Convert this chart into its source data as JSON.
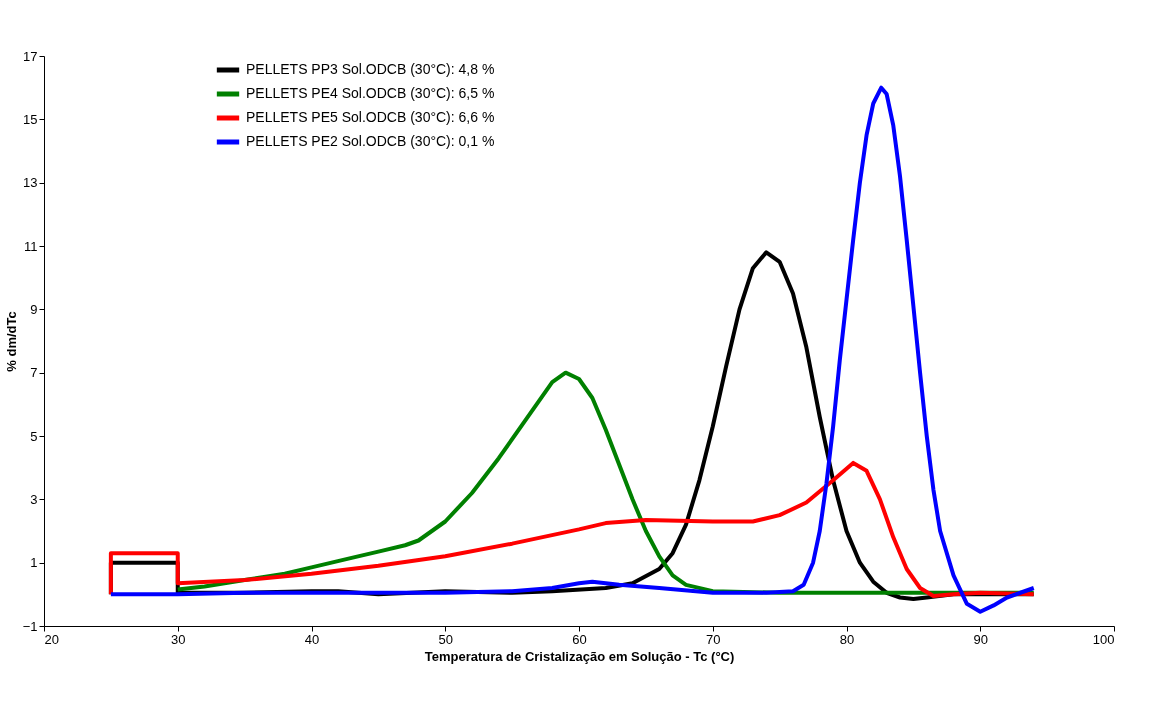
{
  "chart_data": {
    "type": "line",
    "xlabel": "Temperatura de Cristalização em Solução - Tc (°C)",
    "ylabel": "% dm/dTc",
    "xlim": [
      20,
      100
    ],
    "xticks": [
      20,
      30,
      40,
      50,
      60,
      70,
      80,
      90,
      100
    ],
    "ylim": [
      -1,
      17
    ],
    "yticks": [
      -1,
      1,
      3,
      5,
      7,
      9,
      11,
      13,
      15,
      17
    ],
    "grid": false,
    "legend": "top left",
    "marker": "none",
    "line_style": "solid",
    "series": [
      {
        "name": "PELLETS PP3 Sol.ODCB (30°C):  4,8 %",
        "color": "#000000",
        "x": [
          25,
          25,
          30,
          30,
          35,
          40,
          42,
          45,
          50,
          55,
          58,
          62,
          64,
          66,
          67,
          68,
          69,
          70,
          71,
          72,
          73,
          74,
          75,
          76,
          77,
          78,
          79,
          80,
          81,
          82,
          83,
          84,
          85,
          86,
          88,
          90,
          94
        ],
        "values": [
          0,
          1,
          1,
          0.05,
          0.05,
          0.1,
          0.1,
          0.0,
          0.1,
          0.05,
          0.1,
          0.2,
          0.35,
          0.8,
          1.3,
          2.2,
          3.6,
          5.3,
          7.2,
          9.0,
          10.3,
          10.8,
          10.5,
          9.5,
          7.8,
          5.6,
          3.6,
          2.0,
          1.0,
          0.4,
          0.05,
          -0.1,
          -0.15,
          -0.1,
          0,
          0,
          0
        ]
      },
      {
        "name": "PELLETS PE4 Sol.ODCB (30°C):  6,5 %",
        "color": "#008000",
        "x": [
          30,
          32,
          35,
          38,
          40,
          43,
          45,
          47,
          48,
          50,
          52,
          54,
          56,
          57,
          58,
          59,
          60,
          61,
          62,
          63,
          64,
          65,
          66,
          67,
          68,
          70,
          75,
          80,
          85,
          90,
          94
        ],
        "values": [
          0.15,
          0.25,
          0.45,
          0.65,
          0.85,
          1.15,
          1.35,
          1.55,
          1.7,
          2.3,
          3.2,
          4.3,
          5.5,
          6.1,
          6.7,
          7.0,
          6.8,
          6.2,
          5.2,
          4.1,
          3.0,
          2.0,
          1.2,
          0.6,
          0.3,
          0.1,
          0.05,
          0.05,
          0.05,
          0.05,
          0.05
        ]
      },
      {
        "name": "PELLETS PE5 Sol.ODCB (30°C):  6,6 %",
        "color": "#ff0000",
        "x": [
          25,
          25,
          30,
          30,
          35,
          40,
          45,
          50,
          55,
          60,
          62,
          65,
          70,
          73,
          75,
          77,
          79,
          80.5,
          81.5,
          82.5,
          83.5,
          84.5,
          85.5,
          86.5,
          88,
          90,
          94
        ],
        "values": [
          0,
          1.3,
          1.3,
          0.35,
          0.45,
          0.65,
          0.9,
          1.2,
          1.6,
          2.05,
          2.25,
          2.35,
          2.3,
          2.3,
          2.5,
          2.9,
          3.6,
          4.15,
          3.9,
          3.0,
          1.8,
          0.8,
          0.2,
          -0.05,
          0,
          0.05,
          0
        ]
      },
      {
        "name": "PELLETS PE2 Sol.ODCB (30°C):  0,1 %",
        "color": "#0000ff",
        "x": [
          25,
          30,
          35,
          40,
          45,
          50,
          55,
          58,
          60,
          61,
          63,
          66,
          70,
          74,
          76,
          76.8,
          77.5,
          78,
          78.5,
          79,
          79.5,
          80,
          80.5,
          81,
          81.5,
          82,
          82.6,
          83,
          83.5,
          84,
          84.5,
          85,
          85.5,
          86,
          86.5,
          87,
          88,
          89,
          90,
          91,
          92,
          93,
          94
        ],
        "values": [
          0,
          0,
          0.05,
          0.05,
          0.05,
          0.05,
          0.1,
          0.2,
          0.35,
          0.4,
          0.3,
          0.2,
          0.05,
          0.05,
          0.1,
          0.3,
          1.0,
          2.0,
          3.5,
          5.3,
          7.4,
          9.3,
          11.2,
          13.0,
          14.5,
          15.5,
          16.0,
          15.8,
          14.8,
          13.2,
          11.2,
          9.1,
          7.0,
          5.0,
          3.3,
          2.0,
          0.6,
          -0.3,
          -0.55,
          -0.35,
          -0.1,
          0.05,
          0.2
        ]
      }
    ]
  }
}
